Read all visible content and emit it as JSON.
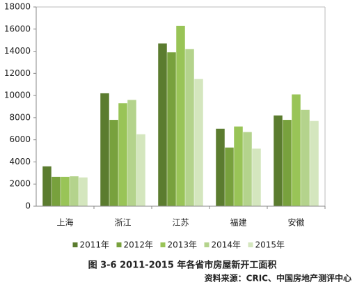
{
  "chart_data": {
    "type": "bar",
    "title": "图 3-6   2011-2015 年各省市房屋新开工面积",
    "source": "资料来源：CRIC、中国房地产测评中心",
    "categories": [
      "上海",
      "浙江",
      "江苏",
      "福建",
      "安徽"
    ],
    "series": [
      {
        "name": "2011年",
        "color": "#5b7c2f",
        "values": [
          3600,
          10200,
          14700,
          7000,
          8200
        ]
      },
      {
        "name": "2012年",
        "color": "#78a13d",
        "values": [
          2650,
          7800,
          13900,
          5300,
          7800
        ]
      },
      {
        "name": "2013年",
        "color": "#99c457",
        "values": [
          2650,
          9300,
          16300,
          7200,
          10100
        ]
      },
      {
        "name": "2014年",
        "color": "#b4d38c",
        "values": [
          2700,
          9600,
          14200,
          6700,
          8700
        ]
      },
      {
        "name": "2015年",
        "color": "#d4e6be",
        "values": [
          2600,
          6500,
          11500,
          5200,
          7700
        ]
      }
    ],
    "ylim": [
      0,
      18000
    ],
    "yticks": [
      0,
      2000,
      4000,
      6000,
      8000,
      10000,
      12000,
      14000,
      16000,
      18000
    ]
  }
}
